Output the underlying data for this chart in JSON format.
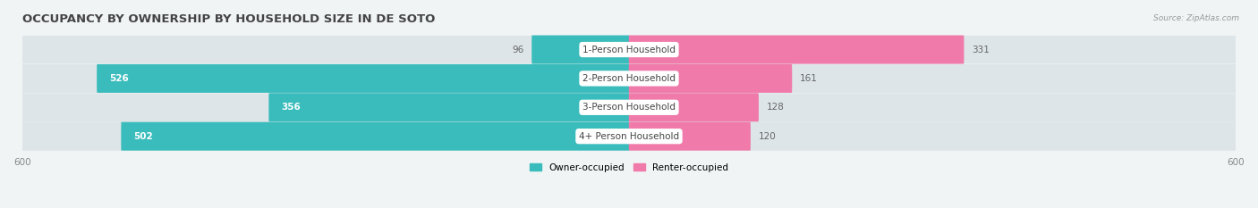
{
  "title": "OCCUPANCY BY OWNERSHIP BY HOUSEHOLD SIZE IN DE SOTO",
  "source": "Source: ZipAtlas.com",
  "categories": [
    "1-Person Household",
    "2-Person Household",
    "3-Person Household",
    "4+ Person Household"
  ],
  "owner_values": [
    96,
    526,
    356,
    502
  ],
  "renter_values": [
    331,
    161,
    128,
    120
  ],
  "axis_max": 600,
  "owner_color": "#3bbcbc",
  "renter_color": "#f07aaa",
  "bg_color": "#f0f4f5",
  "bar_bg_color": "#dde5e8",
  "row_colors": [
    "#ffffff",
    "#e8eef0",
    "#ffffff",
    "#e8eef0"
  ],
  "legend_owner": "Owner-occupied",
  "legend_renter": "Renter-occupied",
  "title_fontsize": 9.5,
  "label_fontsize": 7.5,
  "tick_fontsize": 7.5,
  "value_inside_threshold": 150
}
